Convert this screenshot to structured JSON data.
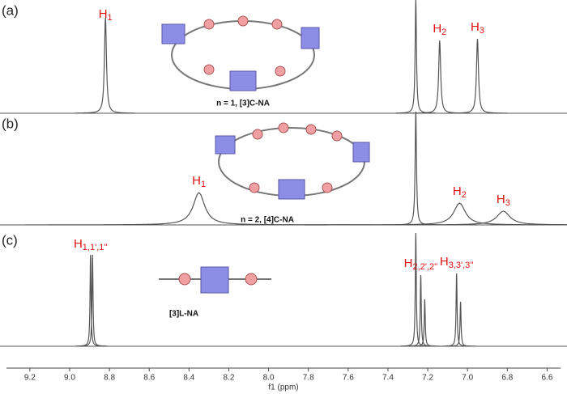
{
  "chart_data": {
    "type": "spectrum",
    "x_label": "f1 (ppm)",
    "xlim": [
      9.35,
      6.5
    ],
    "xticks": [
      9.2,
      {
        "value": 9.0,
        "label": "9.0"
      },
      8.8,
      8.6,
      8.4,
      8.2,
      {
        "value": 8.0,
        "label": "8.0"
      },
      7.8,
      7.6,
      7.4,
      7.2,
      {
        "value": 7.0,
        "label": "7.0"
      },
      6.8,
      6.6
    ],
    "color": "#555555",
    "label_color": "#e01010",
    "panels": [
      {
        "label": "(a)",
        "caption": "n = 1, [3]C-NA",
        "ylim": [
          0,
          140
        ],
        "peaks": [
          {
            "x": 8.82,
            "height": 118,
            "width": 0.006,
            "label": {
              "main": "H",
              "sub": "1"
            }
          },
          {
            "x": 7.26,
            "height": 140,
            "width": 0.004
          },
          {
            "x": 7.14,
            "height": 90,
            "width": 0.006,
            "label": {
              "main": "H",
              "sub": "2"
            }
          },
          {
            "x": 6.95,
            "height": 92,
            "width": 0.006,
            "label": {
              "main": "H",
              "sub": "3"
            }
          }
        ]
      },
      {
        "label": "(b)",
        "caption": "n = 2, [4]C-NA",
        "ylim": [
          0,
          140
        ],
        "peaks": [
          {
            "x": 8.35,
            "height": 40,
            "width": 0.035,
            "label": {
              "main": "H",
              "sub": "1"
            }
          },
          {
            "x": 7.26,
            "height": 140,
            "width": 0.004
          },
          {
            "x": 7.04,
            "height": 27,
            "width": 0.035,
            "label": {
              "main": "H",
              "sub": "2"
            }
          },
          {
            "x": 6.82,
            "height": 17,
            "width": 0.04,
            "label": {
              "main": "H",
              "sub": "3"
            }
          }
        ]
      },
      {
        "label": "(c)",
        "caption": "[3]L-NA",
        "ylim": [
          0,
          140
        ],
        "peaks": [
          {
            "x": 8.895,
            "height": 113,
            "width": 0.003,
            "label": {
              "main": "H",
              "sub": "1,1',1''"
            }
          },
          {
            "x": 8.885,
            "height": 113,
            "width": 0.003
          },
          {
            "x": 7.26,
            "height": 140,
            "width": 0.003
          },
          {
            "x": 7.235,
            "height": 88,
            "width": 0.003,
            "label": {
              "main": "H",
              "sub": "2,2',2''"
            }
          },
          {
            "x": 7.215,
            "height": 58,
            "width": 0.003
          },
          {
            "x": 7.055,
            "height": 90,
            "width": 0.003,
            "label": {
              "main": "H",
              "sub": "3,3',3''"
            }
          },
          {
            "x": 7.035,
            "height": 55,
            "width": 0.003
          }
        ]
      }
    ]
  }
}
